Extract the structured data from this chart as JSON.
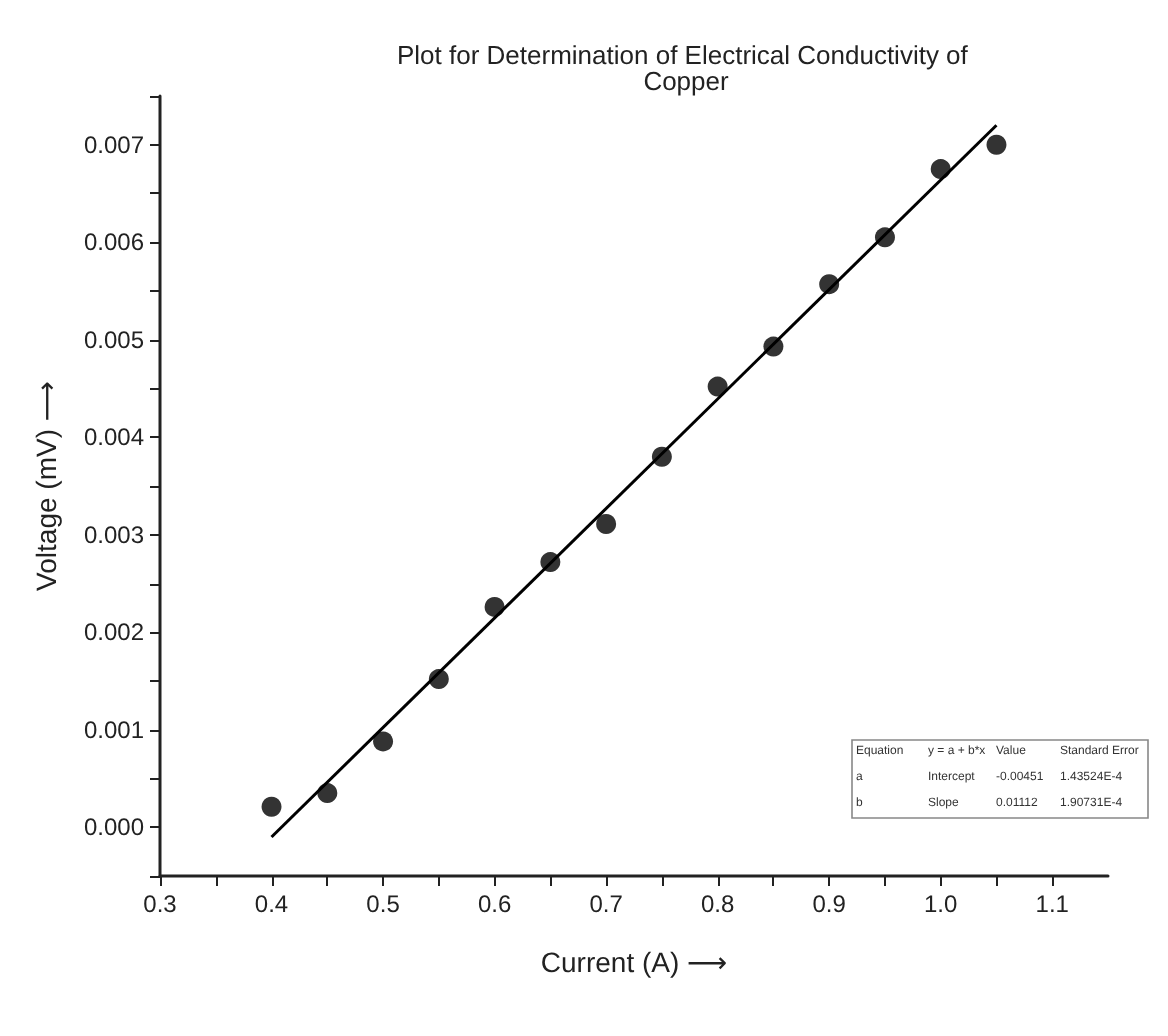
{
  "chart_data": {
    "type": "scatter",
    "title": "Plot for Determination of Electrical Conductivity of Copper",
    "xlabel": "Current (A) ⟶",
    "ylabel": "Voltage (mV) ⟶",
    "x": [
      0.4,
      0.45,
      0.5,
      0.55,
      0.6,
      0.65,
      0.7,
      0.75,
      0.8,
      0.85,
      0.9,
      0.95,
      1.0,
      1.05
    ],
    "series": [
      {
        "color": "#000000",
        "values": [
          0.00021,
          0.00035,
          0.00088,
          0.00152,
          0.00226,
          0.00272,
          0.00311,
          0.0038,
          0.00452,
          0.00493,
          0.00557,
          0.00605,
          0.00675,
          0.007
        ]
      },
      {
        "type": "line",
        "color": "#000000",
        "x": [
          0.4,
          1.05
        ],
        "values": [
          -0.0001,
          0.0072
        ],
        "marker": "none"
      }
    ],
    "marker": "circle",
    "grid": false,
    "xlim": [
      0.3,
      1.15
    ],
    "xticks": [
      0.3,
      0.4,
      0.5,
      0.6,
      0.7,
      0.8,
      0.9,
      {
        "value": 1,
        "label": "1.0"
      },
      1.1
    ],
    "ylim": [
      -0.0005,
      0.0075
    ],
    "yticks": [
      {
        "value": 0,
        "label": "0.000"
      },
      0.001,
      0.002,
      0.003,
      0.004,
      0.005,
      0.006,
      0.007
    ],
    "annotations": [
      "Equation",
      "y = a + b*x",
      "Value",
      "Standard Error",
      "a",
      "Intercept",
      "-0.00451",
      "1.43524E-4",
      "b",
      "Slope",
      "0.01112",
      "1.90731E-4"
    ]
  }
}
